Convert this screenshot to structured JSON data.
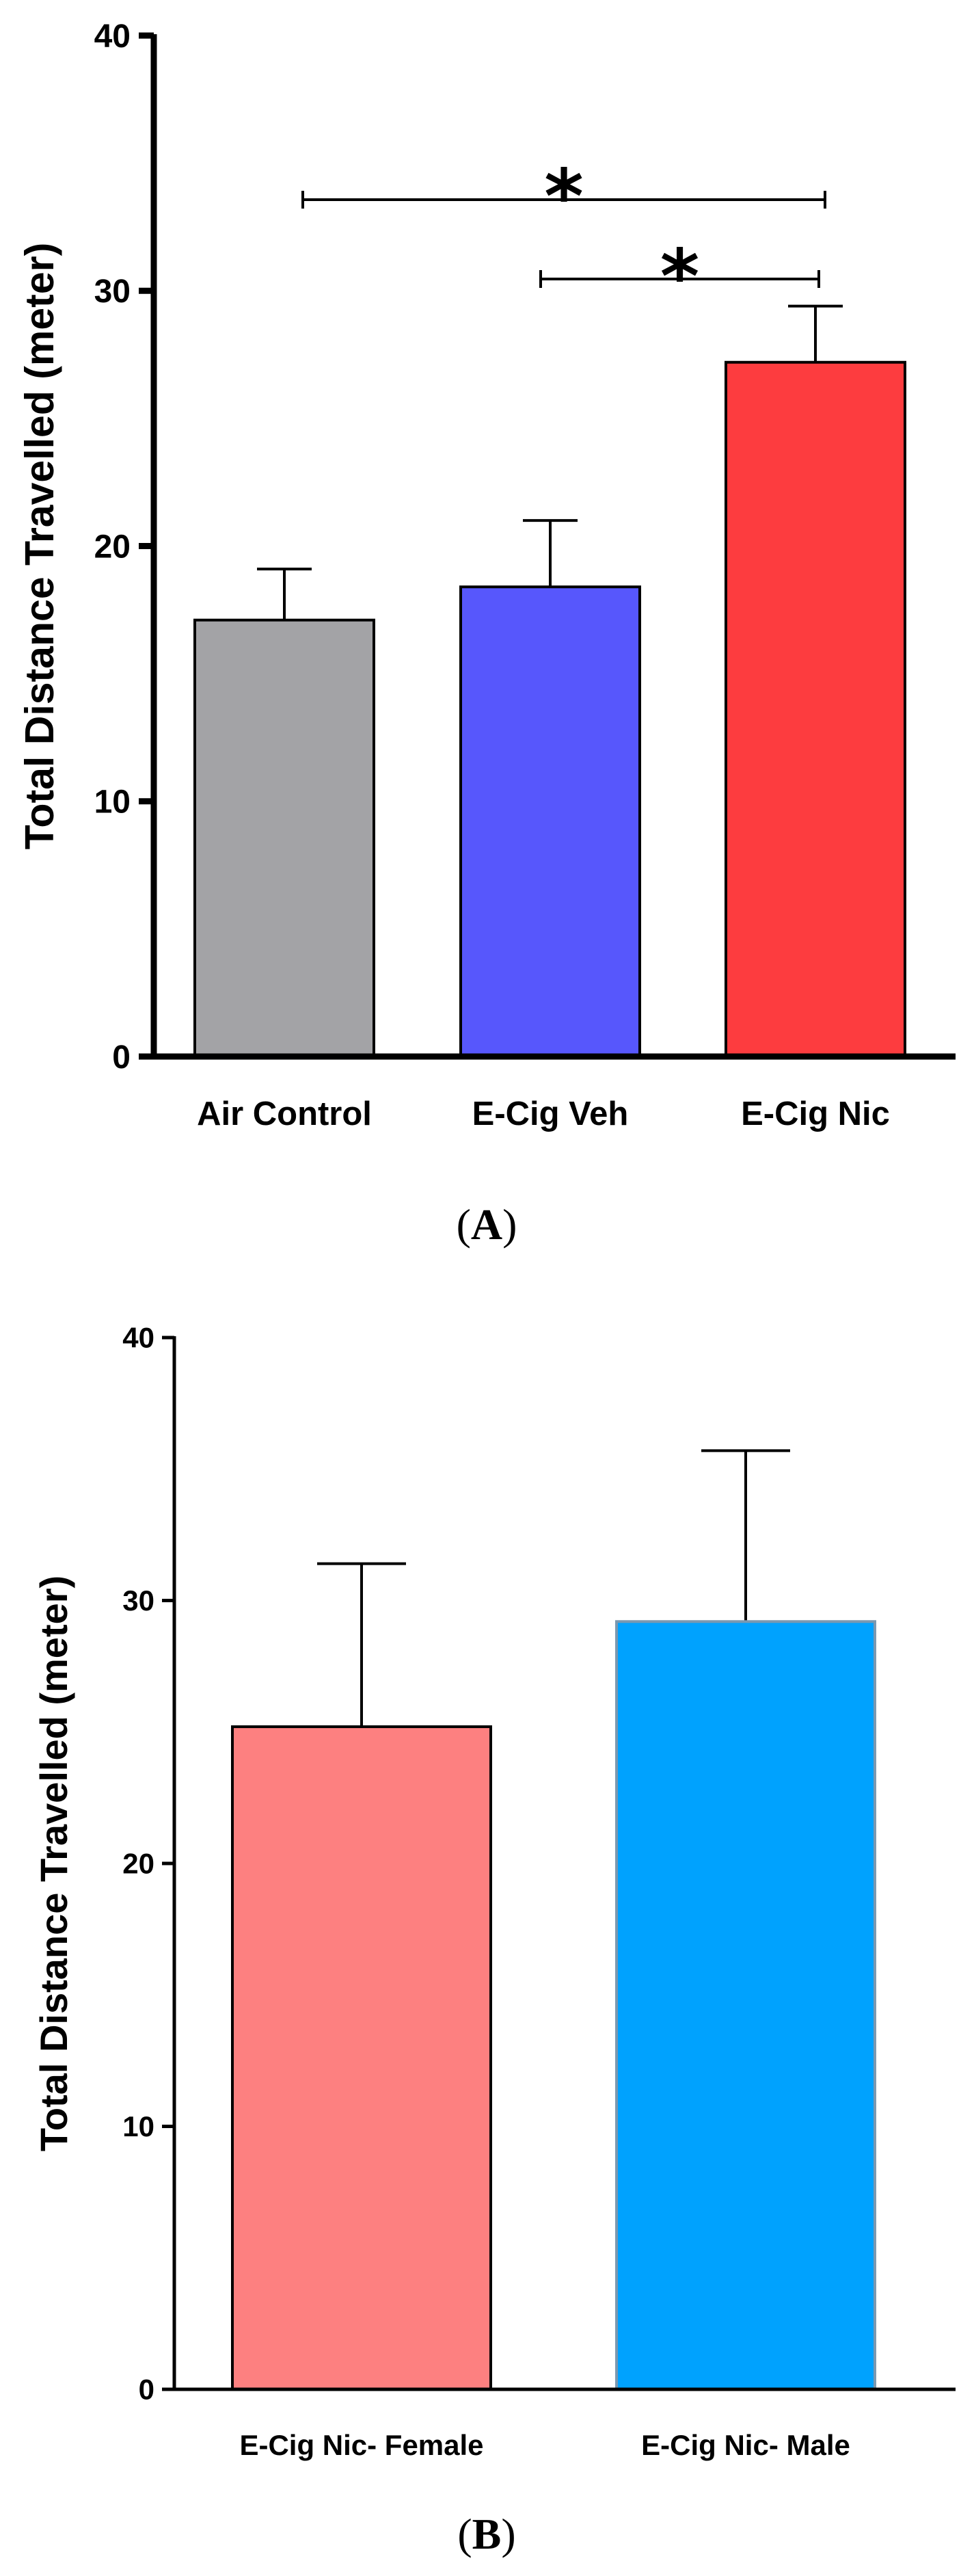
{
  "chart_data": [
    {
      "type": "bar",
      "title": "",
      "xlabel": "",
      "ylabel": "Total Distance Travelled (meter)",
      "ylim": [
        0,
        40
      ],
      "yticks": [
        "0",
        "10",
        "20",
        "30",
        "40"
      ],
      "categories": [
        "Air Control",
        "E-Cig Veh",
        "E-Cig Nic"
      ],
      "values": [
        17.1,
        18.4,
        27.2
      ],
      "errors": [
        2.0,
        2.6,
        2.2
      ],
      "colors": [
        "#a3a3a6",
        "#5757fc",
        "#fd3c3f"
      ],
      "significance": [
        {
          "from": "Air Control",
          "to": "E-Cig Nic",
          "label": "*"
        },
        {
          "from": "E-Cig Veh",
          "to": "E-Cig Nic",
          "label": "*"
        }
      ],
      "panel": {
        "open": "(",
        "letter": "A",
        "close": ")"
      }
    },
    {
      "type": "bar",
      "title": "",
      "xlabel": "",
      "ylabel": "Total Distance Travelled (meter)",
      "ylim": [
        0,
        40
      ],
      "yticks": [
        "0",
        "10",
        "20",
        "30",
        "40"
      ],
      "categories": [
        "E-Cig Nic- Female",
        "E-Cig Nic- Male"
      ],
      "values": [
        25.2,
        29.2
      ],
      "errors": [
        6.2,
        6.5
      ],
      "colors": [
        "#fd8080",
        "#00a2fe"
      ],
      "significance": [],
      "panel": {
        "open": "(",
        "letter": "B",
        "close": ")"
      }
    }
  ]
}
